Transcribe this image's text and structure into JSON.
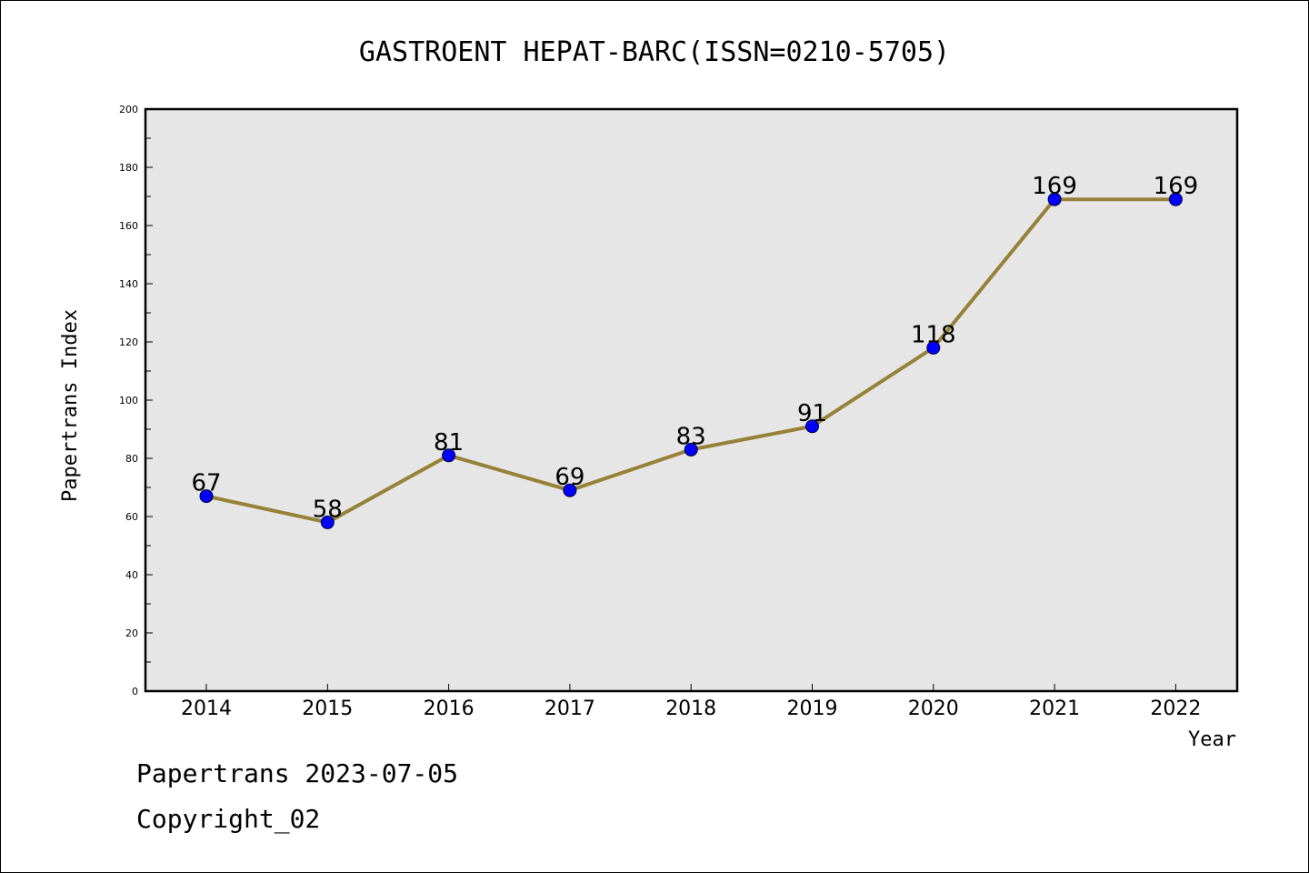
{
  "chart_data": {
    "type": "line",
    "title": "GASTROENT HEPAT-BARC(ISSN=0210-5705)",
    "xlabel": "Year",
    "ylabel": "Papertrans Index",
    "categories": [
      "2014",
      "2015",
      "2016",
      "2017",
      "2018",
      "2019",
      "2020",
      "2021",
      "2022"
    ],
    "series": [
      {
        "values": [
          67,
          58,
          81,
          69,
          83,
          91,
          118,
          169,
          169
        ]
      }
    ],
    "data_labels": [
      "67",
      "58",
      "81",
      "69",
      "83",
      "91",
      "118",
      "169",
      "169"
    ],
    "ylim": [
      0,
      200
    ],
    "yticks": [
      "0",
      "20",
      "40",
      "60",
      "80",
      "100",
      "120",
      "140",
      "160",
      "180",
      "200"
    ],
    "grid": false,
    "colors": {
      "line": "#958238",
      "marker": "#0000ff",
      "plot_background": "#e6e6e6"
    }
  },
  "footer": {
    "line1": "Papertrans 2023-07-05",
    "line2": "Copyright_02"
  }
}
